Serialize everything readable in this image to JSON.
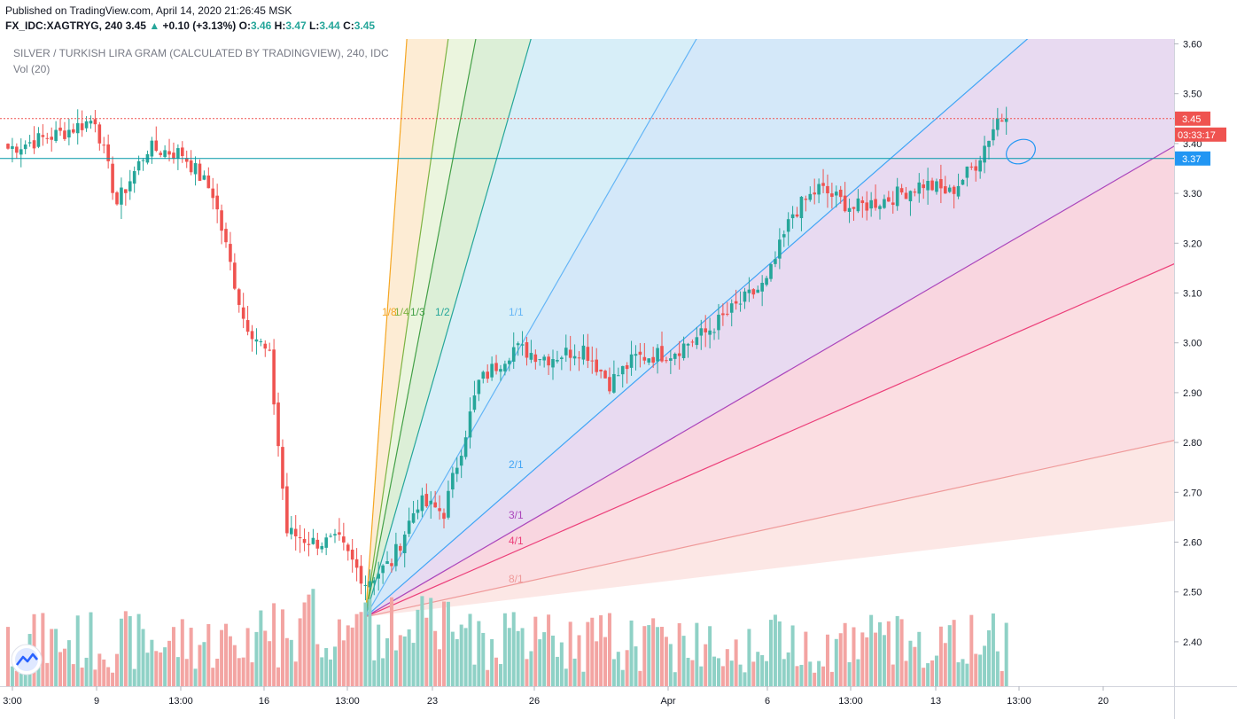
{
  "header": {
    "published": "Published on TradingView.com, April 14, 2020 21:26:45 MSK",
    "symbol": "FX_IDC:XAGTRYG, 240",
    "last": "3.45",
    "change": "+0.10 (+3.13%)",
    "open_label": "O:",
    "open": "3.46",
    "high_label": "H:",
    "high": "3.47",
    "low_label": "L:",
    "low": "3.44",
    "close_label": "C:",
    "close": "3.45"
  },
  "legend": {
    "title": "SILVER / TURKISH LIRA GRAM (CALCULATED BY TRADINGVIEW), 240, IDC",
    "volume": "Vol (20)"
  },
  "price_tags": {
    "last": "3.45",
    "countdown": "03:33:17",
    "hline": "3.37"
  },
  "colors": {
    "up": "#26a69a",
    "down": "#ef5350",
    "vol_up": "#8fd1c6",
    "vol_down": "#f3a4a2",
    "hline": "#0097a7",
    "tag_blue": "#2196f3",
    "tag_red": "#ef5350",
    "watermark": "tradingview-logo-icon"
  },
  "chart_data": {
    "type": "candlestick",
    "title": "SILVER / TURKISH LIRA GRAM (CALCULATED BY TRADINGVIEW), 240, IDC",
    "timeframe": "240",
    "ylim": [
      2.31,
      3.61
    ],
    "y_ticks": [
      2.4,
      2.5,
      2.6,
      2.7,
      2.8,
      2.9,
      3.0,
      3.1,
      3.2,
      3.3,
      3.4,
      3.5,
      3.6
    ],
    "x_ticks": [
      "3:00",
      "9",
      "13:00",
      "16",
      "13:00",
      "23",
      "26",
      "Apr",
      "6",
      "13:00",
      "13",
      "13:00",
      "20"
    ],
    "horizontal_line": 3.37,
    "last_price_line": 3.45,
    "anchors": [
      {
        "bar": 0,
        "close": 3.39
      },
      {
        "bar": 12,
        "close": 3.42
      },
      {
        "bar": 20,
        "close": 3.45
      },
      {
        "bar": 25,
        "close": 3.28
      },
      {
        "bar": 32,
        "close": 3.39
      },
      {
        "bar": 40,
        "close": 3.38
      },
      {
        "bar": 47,
        "close": 3.3
      },
      {
        "bar": 54,
        "close": 3.05
      },
      {
        "bar": 60,
        "close": 2.97
      },
      {
        "bar": 64,
        "close": 2.62
      },
      {
        "bar": 70,
        "close": 2.6
      },
      {
        "bar": 76,
        "close": 2.6
      },
      {
        "bar": 82,
        "close": 2.52
      },
      {
        "bar": 88,
        "close": 2.56
      },
      {
        "bar": 94,
        "close": 2.68
      },
      {
        "bar": 100,
        "close": 2.66
      },
      {
        "bar": 108,
        "close": 2.92
      },
      {
        "bar": 116,
        "close": 2.99
      },
      {
        "bar": 124,
        "close": 2.97
      },
      {
        "bar": 132,
        "close": 2.99
      },
      {
        "bar": 138,
        "close": 2.92
      },
      {
        "bar": 144,
        "close": 2.97
      },
      {
        "bar": 152,
        "close": 2.98
      },
      {
        "bar": 160,
        "close": 3.02
      },
      {
        "bar": 168,
        "close": 3.08
      },
      {
        "bar": 174,
        "close": 3.12
      },
      {
        "bar": 180,
        "close": 3.26
      },
      {
        "bar": 186,
        "close": 3.31
      },
      {
        "bar": 194,
        "close": 3.27
      },
      {
        "bar": 202,
        "close": 3.29
      },
      {
        "bar": 210,
        "close": 3.32
      },
      {
        "bar": 216,
        "close": 3.3
      },
      {
        "bar": 222,
        "close": 3.36
      },
      {
        "bar": 227,
        "close": 3.45
      },
      {
        "bar": 229,
        "close": 3.45
      }
    ],
    "gann_fan": {
      "origin_bar": 82,
      "origin_price": 2.45,
      "unit_bar": 36,
      "unit_price": 0.55,
      "lines": [
        {
          "label": "1/8",
          "ratio": 0.125,
          "color": "#f5a623",
          "fill": "#fde9cc"
        },
        {
          "label": "1/4",
          "ratio": 0.25,
          "color": "#7cb342",
          "fill": "#e7f3d8"
        },
        {
          "label": "1/3",
          "ratio": 0.3333,
          "color": "#43a047",
          "fill": "#d6ecd0"
        },
        {
          "label": "1/2",
          "ratio": 0.5,
          "color": "#26a69a",
          "fill": "#d0ebf7"
        },
        {
          "label": "1/1",
          "ratio": 1,
          "color": "#64b5f6",
          "fill": "#cde4f8"
        },
        {
          "label": "2/1",
          "ratio": 2,
          "color": "#42a5f5",
          "fill": "#e4d3ef"
        },
        {
          "label": "3/1",
          "ratio": 3,
          "color": "#ab47bc",
          "fill": "#f8cfdb"
        },
        {
          "label": "4/1",
          "ratio": 4,
          "color": "#ec407a",
          "fill": "#fad8dd"
        },
        {
          "label": "8/1",
          "ratio": 8,
          "color": "#ef9a9a",
          "fill": "#fbe3e0"
        }
      ]
    }
  }
}
